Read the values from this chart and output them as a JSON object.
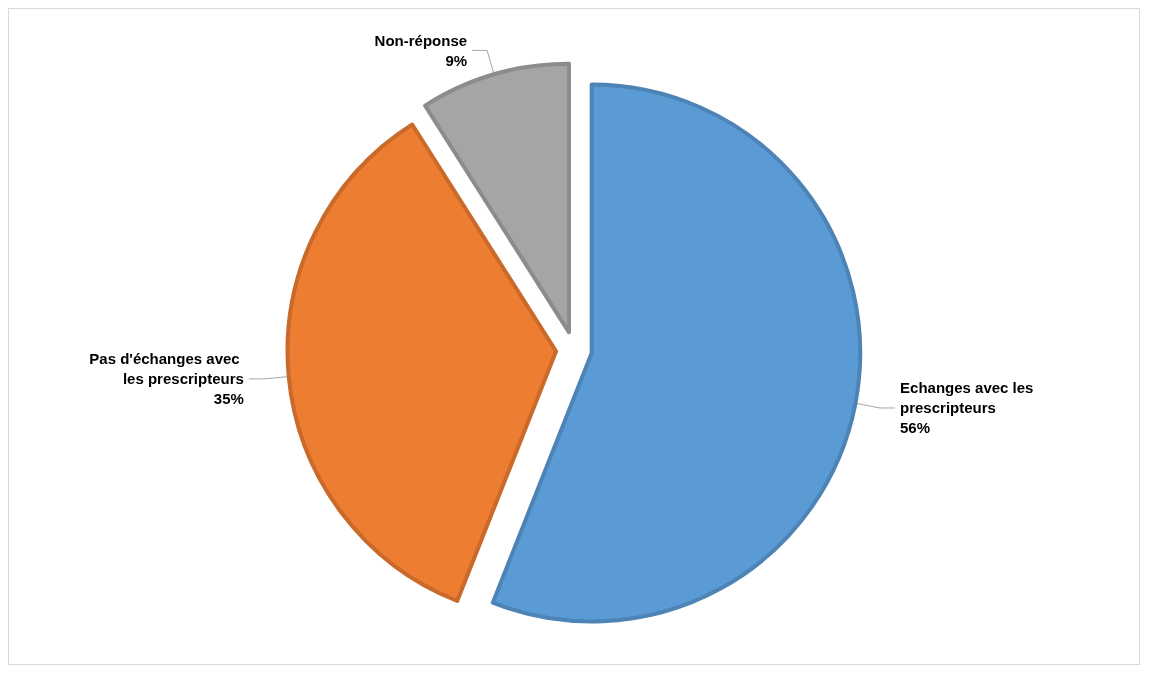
{
  "chart_data": {
    "type": "pie",
    "categories": [
      "Echanges avec les prescripteurs",
      "Pas d'échanges avec les prescripteurs",
      "Non-réponse"
    ],
    "values": [
      56,
      35,
      9
    ],
    "value_labels": [
      "56%",
      "35%",
      "9%"
    ],
    "colors": [
      "#5b9bd5",
      "#ed7d31",
      "#a5a5a5"
    ],
    "legend": false
  }
}
